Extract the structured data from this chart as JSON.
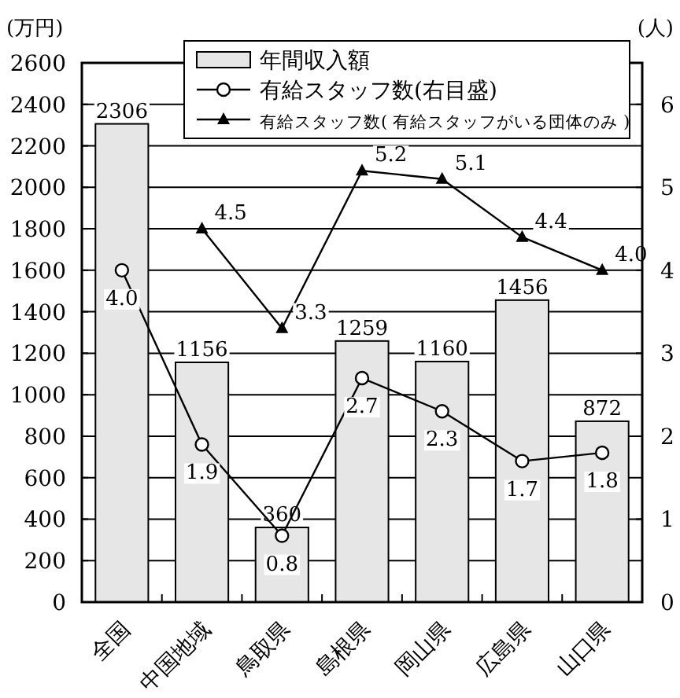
{
  "chart_data": {
    "type": "bar",
    "ylabel": "(万円)",
    "y2label": "(人)",
    "categories": [
      "全国",
      "中国地域",
      "鳥取県",
      "島根県",
      "岡山県",
      "広島県",
      "山口県"
    ],
    "series": [
      {
        "name": "年間収入額",
        "type": "bar",
        "color": "#e6e6e6",
        "values": [
          2306,
          1156,
          360,
          1259,
          1160,
          1456,
          872
        ],
        "value_labels": [
          "2306",
          "1156",
          "360",
          "1259",
          "1160",
          "1456",
          "872"
        ]
      },
      {
        "name": "有給スタッフ数(右目盛)",
        "type": "line",
        "axis": "y2",
        "marker": "circle",
        "color": "#000000",
        "values": [
          4.0,
          1.9,
          0.8,
          2.7,
          2.3,
          1.7,
          1.8
        ],
        "value_labels": [
          "4.0",
          "1.9",
          "0.8",
          "2.7",
          "2.3",
          "1.7",
          "1.8"
        ]
      },
      {
        "name": "有給スタッフ数( 有給スタッフがいる団体のみ )",
        "type": "line",
        "axis": "y2",
        "marker": "triangle",
        "color": "#000000",
        "values": [
          null,
          4.5,
          3.3,
          5.2,
          5.1,
          4.4,
          4.0
        ],
        "value_labels": [
          null,
          "4.5",
          "3.3",
          "5.2",
          "5.1",
          "4.4",
          "4.0"
        ]
      }
    ],
    "ylim": [
      0,
      2600
    ],
    "yticks": [
      0,
      200,
      400,
      600,
      800,
      1000,
      1200,
      1400,
      1600,
      1800,
      2000,
      2200,
      2400,
      2600
    ],
    "y2lim": [
      0,
      6.5
    ],
    "y2ticks": [
      0,
      1,
      2,
      3,
      4,
      5,
      6
    ],
    "grid": "y",
    "legend": "top"
  }
}
